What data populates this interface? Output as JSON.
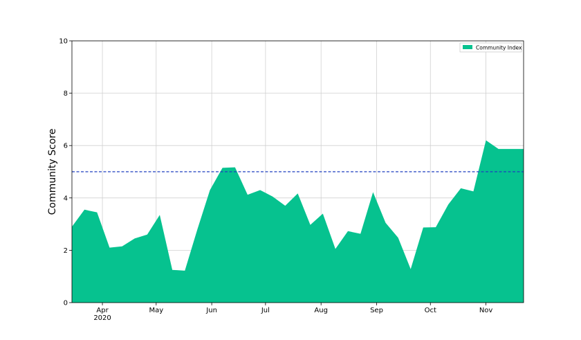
{
  "chart_data": {
    "type": "area",
    "title": "",
    "xlabel": "",
    "ylabel": "Community Score",
    "ylim": [
      0,
      10
    ],
    "yticks": [
      0,
      2,
      4,
      6,
      8,
      10
    ],
    "xlim": [
      "2020-03-15",
      "2020-11-22"
    ],
    "xticks": [
      {
        "date": "2020-04-01",
        "label": "Apr",
        "sublabel": "2020"
      },
      {
        "date": "2020-05-01",
        "label": "May"
      },
      {
        "date": "2020-06-01",
        "label": "Jun"
      },
      {
        "date": "2020-07-01",
        "label": "Jul"
      },
      {
        "date": "2020-08-01",
        "label": "Aug"
      },
      {
        "date": "2020-09-01",
        "label": "Sep"
      },
      {
        "date": "2020-10-01",
        "label": "Oct"
      },
      {
        "date": "2020-11-01",
        "label": "Nov"
      }
    ],
    "grid": true,
    "legend_position": "top-right",
    "reference_line": {
      "y": 5.0,
      "color": "#1f3fbf",
      "style": "dashed"
    },
    "series": [
      {
        "name": "Community Index",
        "color": "#06c28f",
        "x": [
          "2020-03-15",
          "2020-03-22",
          "2020-03-29",
          "2020-04-05",
          "2020-04-12",
          "2020-04-19",
          "2020-04-26",
          "2020-05-03",
          "2020-05-10",
          "2020-05-17",
          "2020-05-24",
          "2020-05-31",
          "2020-06-07",
          "2020-06-14",
          "2020-06-21",
          "2020-06-28",
          "2020-07-05",
          "2020-07-12",
          "2020-07-19",
          "2020-07-26",
          "2020-08-02",
          "2020-08-09",
          "2020-08-16",
          "2020-08-23",
          "2020-08-30",
          "2020-09-06",
          "2020-09-13",
          "2020-09-20",
          "2020-09-27",
          "2020-10-04",
          "2020-10-11",
          "2020-10-18",
          "2020-10-25",
          "2020-11-01",
          "2020-11-08",
          "2020-11-15",
          "2020-11-22"
        ],
        "values": [
          2.9,
          3.55,
          3.45,
          2.1,
          2.15,
          2.45,
          2.6,
          3.35,
          1.25,
          1.22,
          2.8,
          4.3,
          5.15,
          5.17,
          4.12,
          4.3,
          4.05,
          3.7,
          4.17,
          2.97,
          3.4,
          2.05,
          2.73,
          2.63,
          4.22,
          3.05,
          2.48,
          1.28,
          2.87,
          2.88,
          3.75,
          4.37,
          4.25,
          6.2,
          5.87,
          5.87,
          5.87
        ]
      }
    ]
  }
}
